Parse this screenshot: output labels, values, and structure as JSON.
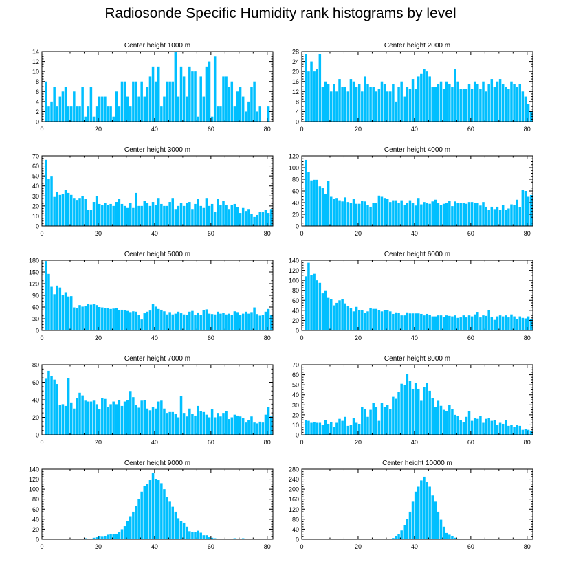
{
  "figure": {
    "title": "Radiosonde Specific Humidity rank histograms by level"
  },
  "style": {
    "bar_color": "#00bfff",
    "axis_color": "#000000"
  },
  "chart_data": [
    {
      "type": "bar",
      "title": "Center height 1000 m",
      "xlabel": "",
      "ylabel": "",
      "xlim": [
        0,
        82
      ],
      "ylim": [
        0,
        14
      ],
      "yticks": [
        0,
        2,
        4,
        6,
        8,
        10,
        12,
        14
      ],
      "xticks": [
        0,
        20,
        40,
        60,
        80
      ],
      "values": [
        0,
        8,
        3,
        4,
        7,
        3,
        5,
        6,
        7,
        3,
        3,
        6,
        3,
        3,
        7,
        1,
        3,
        7,
        1,
        3,
        5,
        5,
        5,
        3,
        3,
        1,
        6,
        3,
        8,
        8,
        5,
        3,
        8,
        8,
        5,
        8,
        5,
        7,
        9,
        11,
        8,
        11,
        3,
        5,
        8,
        8,
        8,
        14,
        5,
        11,
        9,
        5,
        11,
        10,
        10,
        1,
        9,
        5,
        11,
        12,
        1,
        13,
        3,
        3,
        9,
        9,
        7,
        8,
        3,
        6,
        7,
        5,
        2,
        4,
        7,
        8,
        2,
        3,
        0,
        0,
        3,
        0
      ]
    },
    {
      "type": "bar",
      "title": "Center height 2000 m",
      "xlabel": "",
      "ylabel": "",
      "xlim": [
        0,
        82
      ],
      "ylim": [
        0,
        28
      ],
      "yticks": [
        0,
        4,
        8,
        12,
        16,
        20,
        24,
        28
      ],
      "xticks": [
        0,
        20,
        40,
        60,
        80
      ],
      "values": [
        0,
        27,
        20,
        24,
        20,
        21,
        27,
        14,
        16,
        15,
        12,
        15,
        12,
        17,
        14,
        14,
        12,
        17,
        16,
        14,
        15,
        12,
        18,
        15,
        14,
        14,
        12,
        13,
        16,
        15,
        12,
        12,
        15,
        8,
        14,
        16,
        10,
        14,
        13,
        17,
        13,
        18,
        19,
        21,
        20,
        18,
        14,
        14,
        15,
        16,
        13,
        16,
        15,
        14,
        21,
        16,
        13,
        13,
        13,
        15,
        13,
        16,
        15,
        13,
        16,
        12,
        15,
        17,
        14,
        16,
        17,
        15,
        14,
        13,
        16,
        15,
        14,
        15,
        12,
        10,
        7,
        4
      ]
    },
    {
      "type": "bar",
      "title": "Center height 3000 m",
      "xlabel": "",
      "ylabel": "",
      "xlim": [
        0,
        82
      ],
      "ylim": [
        0,
        70
      ],
      "yticks": [
        0,
        10,
        20,
        30,
        40,
        50,
        60,
        70
      ],
      "xticks": [
        0,
        20,
        40,
        60,
        80
      ],
      "values": [
        0,
        66,
        47,
        50,
        29,
        34,
        31,
        32,
        36,
        33,
        31,
        28,
        26,
        28,
        30,
        27,
        16,
        16,
        24,
        30,
        22,
        21,
        23,
        21,
        22,
        20,
        24,
        27,
        22,
        20,
        18,
        23,
        18,
        33,
        20,
        20,
        25,
        23,
        20,
        24,
        21,
        28,
        22,
        20,
        20,
        24,
        28,
        17,
        20,
        23,
        20,
        23,
        24,
        17,
        22,
        27,
        20,
        18,
        28,
        20,
        22,
        14,
        27,
        21,
        25,
        21,
        17,
        21,
        22,
        19,
        13,
        18,
        15,
        17,
        12,
        9,
        11,
        14,
        14,
        16,
        13,
        17
      ]
    },
    {
      "type": "bar",
      "title": "Center height 4000 m",
      "xlabel": "",
      "ylabel": "",
      "xlim": [
        0,
        82
      ],
      "ylim": [
        0,
        120
      ],
      "yticks": [
        0,
        20,
        40,
        60,
        80,
        100,
        120
      ],
      "xticks": [
        0,
        20,
        40,
        60,
        80
      ],
      "values": [
        0,
        113,
        92,
        78,
        79,
        79,
        68,
        65,
        55,
        77,
        50,
        46,
        48,
        44,
        42,
        49,
        41,
        40,
        46,
        38,
        38,
        43,
        42,
        36,
        33,
        40,
        40,
        52,
        50,
        48,
        46,
        41,
        44,
        44,
        40,
        44,
        36,
        40,
        44,
        40,
        35,
        48,
        37,
        41,
        39,
        38,
        42,
        45,
        40,
        36,
        38,
        39,
        43,
        34,
        42,
        40,
        40,
        40,
        38,
        41,
        41,
        40,
        40,
        35,
        41,
        33,
        28,
        33,
        29,
        33,
        28,
        36,
        28,
        30,
        37,
        36,
        45,
        32,
        62,
        60,
        50,
        53
      ]
    },
    {
      "type": "bar",
      "title": "Center height 5000 m",
      "xlabel": "",
      "ylabel": "",
      "xlim": [
        0,
        82
      ],
      "ylim": [
        0,
        180
      ],
      "yticks": [
        0,
        30,
        60,
        90,
        120,
        150,
        180
      ],
      "xticks": [
        0,
        20,
        40,
        60,
        80
      ],
      "values": [
        0,
        178,
        145,
        112,
        93,
        115,
        110,
        90,
        98,
        87,
        88,
        59,
        58,
        65,
        61,
        62,
        68,
        66,
        67,
        65,
        60,
        59,
        58,
        58,
        55,
        56,
        57,
        52,
        53,
        52,
        50,
        47,
        49,
        48,
        40,
        28,
        44,
        48,
        51,
        68,
        61,
        55,
        53,
        49,
        41,
        47,
        41,
        43,
        48,
        44,
        41,
        40,
        48,
        50,
        40,
        46,
        40,
        52,
        54,
        43,
        42,
        41,
        48,
        43,
        45,
        41,
        43,
        40,
        49,
        47,
        40,
        43,
        48,
        43,
        47,
        59,
        42,
        38,
        40,
        48,
        55,
        40
      ]
    },
    {
      "type": "bar",
      "title": "Center height 6000 m",
      "xlabel": "",
      "ylabel": "",
      "xlim": [
        0,
        82
      ],
      "ylim": [
        0,
        140
      ],
      "yticks": [
        0,
        20,
        40,
        60,
        80,
        100,
        120,
        140
      ],
      "xticks": [
        0,
        20,
        40,
        60,
        80
      ],
      "values": [
        0,
        108,
        135,
        110,
        113,
        100,
        95,
        74,
        80,
        65,
        62,
        50,
        55,
        60,
        63,
        54,
        48,
        45,
        38,
        47,
        40,
        41,
        35,
        38,
        45,
        43,
        43,
        40,
        38,
        40,
        40,
        38,
        33,
        36,
        35,
        30,
        30,
        36,
        34,
        34,
        34,
        34,
        33,
        30,
        33,
        31,
        28,
        28,
        30,
        30,
        27,
        30,
        29,
        28,
        30,
        25,
        26,
        30,
        26,
        30,
        28,
        32,
        37,
        26,
        30,
        29,
        40,
        27,
        21,
        28,
        30,
        28,
        30,
        26,
        32,
        28,
        23,
        28,
        25,
        24,
        28,
        23
      ]
    },
    {
      "type": "bar",
      "title": "Center height 7000 m",
      "xlabel": "",
      "ylabel": "",
      "xlim": [
        0,
        82
      ],
      "ylim": [
        0,
        80
      ],
      "yticks": [
        0,
        20,
        40,
        60,
        80
      ],
      "xticks": [
        0,
        20,
        40,
        60,
        80
      ],
      "values": [
        0,
        64,
        73,
        67,
        63,
        58,
        34,
        35,
        33,
        65,
        37,
        30,
        42,
        48,
        45,
        39,
        38,
        38,
        39,
        35,
        29,
        42,
        41,
        32,
        35,
        38,
        35,
        40,
        33,
        38,
        40,
        50,
        43,
        34,
        31,
        39,
        40,
        30,
        28,
        32,
        30,
        38,
        39,
        30,
        25,
        26,
        26,
        24,
        20,
        44,
        25,
        21,
        30,
        24,
        22,
        33,
        27,
        26,
        23,
        20,
        29,
        20,
        25,
        21,
        25,
        27,
        18,
        20,
        23,
        22,
        21,
        19,
        14,
        17,
        21,
        14,
        13,
        15,
        14,
        23,
        32,
        21
      ]
    },
    {
      "type": "bar",
      "title": "Center height 8000 m",
      "xlabel": "",
      "ylabel": "",
      "xlim": [
        0,
        82
      ],
      "ylim": [
        0,
        70
      ],
      "yticks": [
        0,
        10,
        20,
        30,
        40,
        50,
        60,
        70
      ],
      "xticks": [
        0,
        20,
        40,
        60,
        80
      ],
      "values": [
        0,
        15,
        14,
        12,
        13,
        12,
        12,
        10,
        15,
        11,
        13,
        8,
        12,
        16,
        14,
        18,
        9,
        10,
        17,
        12,
        11,
        28,
        26,
        18,
        25,
        32,
        28,
        14,
        32,
        28,
        30,
        26,
        38,
        36,
        43,
        51,
        50,
        61,
        54,
        46,
        52,
        46,
        34,
        48,
        52,
        44,
        37,
        28,
        34,
        29,
        25,
        24,
        30,
        26,
        20,
        19,
        15,
        13,
        18,
        24,
        14,
        17,
        16,
        19,
        12,
        16,
        17,
        14,
        15,
        10,
        12,
        11,
        15,
        9,
        10,
        8,
        10,
        9,
        5,
        6,
        5,
        4
      ]
    },
    {
      "type": "bar",
      "title": "Center height 9000 m",
      "xlabel": "",
      "ylabel": "",
      "xlim": [
        0,
        82
      ],
      "ylim": [
        0,
        140
      ],
      "yticks": [
        0,
        20,
        40,
        60,
        80,
        100,
        120,
        140
      ],
      "xticks": [
        0,
        20,
        40,
        60,
        80
      ],
      "values": [
        0,
        0,
        0,
        0,
        0,
        0,
        0,
        0,
        1,
        1,
        1,
        0,
        1,
        1,
        0,
        2,
        1,
        1,
        3,
        4,
        6,
        5,
        6,
        9,
        11,
        10,
        11,
        15,
        20,
        26,
        37,
        46,
        55,
        66,
        80,
        95,
        107,
        110,
        118,
        132,
        120,
        118,
        112,
        100,
        85,
        75,
        65,
        55,
        42,
        36,
        33,
        25,
        16,
        15,
        15,
        17,
        13,
        8,
        8,
        4,
        3,
        2,
        1,
        0,
        1,
        0,
        0,
        0,
        2,
        1,
        1,
        2,
        0,
        0,
        1,
        0,
        0,
        0,
        0,
        0,
        0,
        0
      ]
    },
    {
      "type": "bar",
      "title": "Center height 10000 m",
      "xlabel": "",
      "ylabel": "",
      "xlim": [
        0,
        82
      ],
      "ylim": [
        0,
        280
      ],
      "yticks": [
        0,
        40,
        80,
        120,
        160,
        200,
        240,
        280
      ],
      "xticks": [
        0,
        20,
        40,
        60,
        80
      ],
      "values": [
        0,
        0,
        0,
        0,
        0,
        0,
        0,
        0,
        0,
        0,
        0,
        0,
        0,
        0,
        0,
        0,
        0,
        0,
        0,
        0,
        0,
        0,
        0,
        0,
        0,
        0,
        0,
        0,
        0,
        0,
        0,
        1,
        5,
        12,
        20,
        35,
        55,
        80,
        110,
        150,
        190,
        210,
        235,
        250,
        230,
        210,
        175,
        150,
        110,
        78,
        50,
        25,
        18,
        12,
        6,
        3,
        2,
        1,
        1,
        0,
        0,
        0,
        0,
        0,
        0,
        0,
        0,
        0,
        0,
        0,
        0,
        0,
        0,
        0,
        0,
        0,
        0,
        0,
        0,
        0,
        0,
        0
      ]
    }
  ]
}
